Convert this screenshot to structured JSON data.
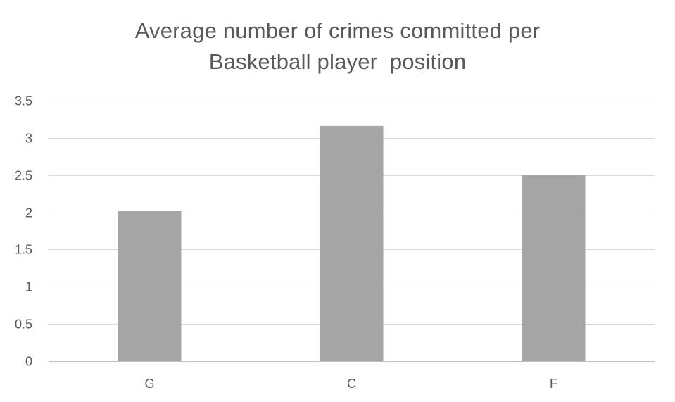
{
  "chart_data": {
    "type": "bar",
    "title_lines": [
      "Average number of crimes committed per",
      "Basketball player  position"
    ],
    "categories": [
      "G",
      "C",
      "F"
    ],
    "values": [
      2.02,
      3.16,
      2.5
    ],
    "ylim": [
      0,
      3.5
    ],
    "yticks": [
      "0",
      "0.5",
      "1",
      "1.5",
      "2",
      "2.5",
      "3",
      "3.5"
    ],
    "xlabel": "",
    "ylabel": "",
    "grid": true,
    "legend": "none",
    "colors": {
      "bar": "#a5a5a5",
      "grid": "#d9d9d9",
      "text": "#595959"
    }
  }
}
